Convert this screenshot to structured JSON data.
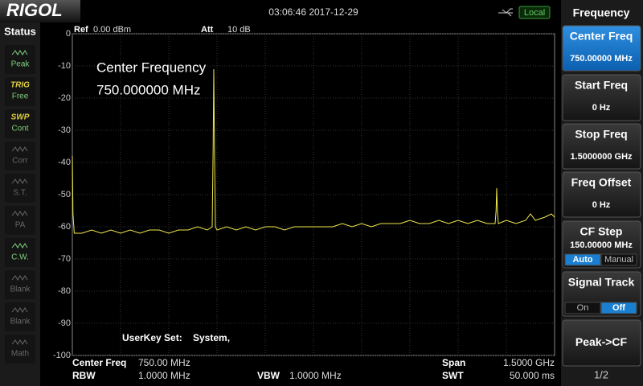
{
  "header": {
    "logo": "RIGOL",
    "datetime": "03:06:46 2017-12-29",
    "mode": "Local"
  },
  "status": {
    "title": "Status",
    "items": [
      {
        "label": "Peak",
        "active": true
      },
      {
        "tag": "TRIG",
        "label": "Free",
        "active": true
      },
      {
        "tag": "SWP",
        "label": "Cont",
        "active": true
      },
      {
        "label": "Corr",
        "active": false
      },
      {
        "label": "S.T.",
        "active": false
      },
      {
        "label": "PA",
        "active": false
      },
      {
        "label": "C.W.",
        "active": true
      },
      {
        "label": "Blank",
        "active": false
      },
      {
        "label": "Blank",
        "active": false
      },
      {
        "label": "Math",
        "active": false
      }
    ]
  },
  "screen": {
    "ref_label": "Ref",
    "ref_value": "0.00 dBm",
    "att_label": "Att",
    "att_value": "10 dB",
    "annotation": [
      "Center Frequency",
      "750.000000 MHz"
    ],
    "userkey": [
      "UserKey Set:",
      "System,"
    ],
    "ylim": [
      -100,
      0
    ],
    "yticks": [
      0,
      -10,
      -20,
      -30,
      -40,
      -50,
      -60,
      -70,
      -80,
      -90,
      -100
    ],
    "trace": {
      "color": "#f2e84a",
      "xlim": [
        0,
        1500
      ],
      "x": [
        0,
        2,
        6,
        30,
        60,
        90,
        120,
        150,
        180,
        210,
        240,
        270,
        300,
        330,
        360,
        390,
        420,
        435,
        438,
        440,
        442,
        445,
        450,
        480,
        510,
        540,
        570,
        600,
        630,
        660,
        690,
        720,
        750,
        780,
        810,
        840,
        870,
        900,
        930,
        960,
        990,
        1020,
        1050,
        1080,
        1110,
        1140,
        1170,
        1200,
        1230,
        1260,
        1290,
        1315,
        1318,
        1320,
        1322,
        1325,
        1350,
        1380,
        1410,
        1425,
        1440,
        1470,
        1490,
        1500
      ],
      "values": [
        -38,
        -56,
        -62,
        -62,
        -61,
        -62,
        -61,
        -62,
        -61,
        -62,
        -61,
        -61,
        -62,
        -61,
        -61,
        -60,
        -61,
        -60,
        -35,
        -11,
        -35,
        -60,
        -61,
        -60,
        -61,
        -60,
        -61,
        -60,
        -60,
        -61,
        -60,
        -60,
        -60,
        -60,
        -60,
        -59,
        -60,
        -59,
        -60,
        -59,
        -59,
        -59,
        -58,
        -59,
        -59,
        -58,
        -59,
        -58,
        -59,
        -58,
        -59,
        -59,
        -55,
        -48,
        -55,
        -59,
        -58,
        -59,
        -58,
        -56,
        -58,
        -57,
        -56,
        -57
      ]
    }
  },
  "footer": {
    "center_label": "Center Freq",
    "center_value": "750.00 MHz",
    "rbw_label": "RBW",
    "rbw_value": "1.0000 MHz",
    "vbw_label": "VBW",
    "vbw_value": "1.0000 MHz",
    "span_label": "Span",
    "span_value": "1.5000 GHz",
    "swt_label": "SWT",
    "swt_value": "50.000 ms"
  },
  "menu": {
    "title": "Frequency",
    "buttons": [
      {
        "label": "Center Freq",
        "value": "750.00000 MHz",
        "active": true
      },
      {
        "label": "Start Freq",
        "value": "0 Hz"
      },
      {
        "label": "Stop Freq",
        "value": "1.5000000 GHz"
      },
      {
        "label": "Freq Offset",
        "value": "0 Hz"
      },
      {
        "label": "CF Step",
        "value": "150.00000 MHz",
        "options": [
          "Auto",
          "Manual"
        ],
        "selected": 0
      },
      {
        "label": "Signal Track",
        "options": [
          "On",
          "Off"
        ],
        "selected": 1
      },
      {
        "label": "Peak->CF"
      }
    ],
    "page": "1/2"
  }
}
